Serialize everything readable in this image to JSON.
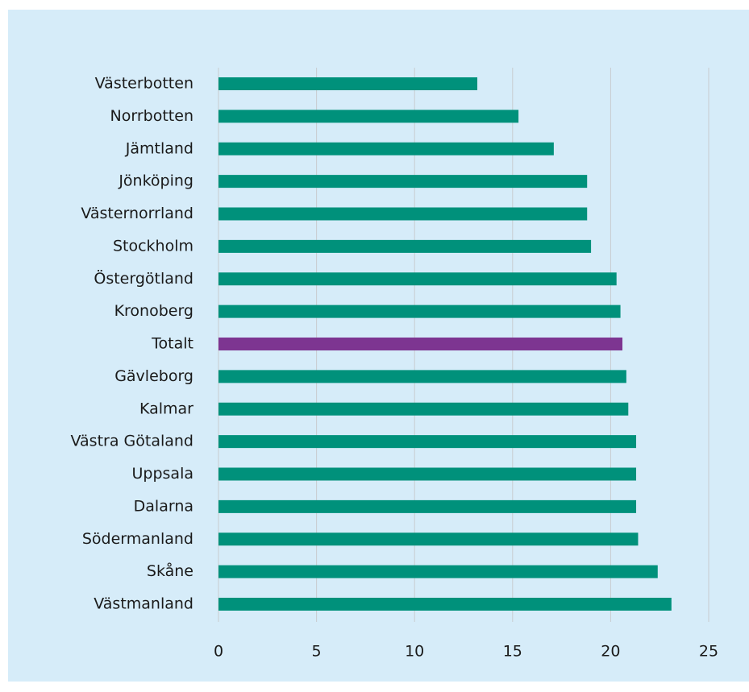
{
  "chart_data": {
    "type": "barh",
    "categories": [
      "Västerbotten",
      "Norrbotten",
      "Jämtland",
      "Jönköping",
      "Västernorrland",
      "Stockholm",
      "Östergötland",
      "Kronoberg",
      "Totalt",
      "Gävleborg",
      "Kalmar",
      "Västra Götaland",
      "Uppsala",
      "Dalarna",
      "Södermanland",
      "Skåne",
      "Västmanland"
    ],
    "values": [
      13.2,
      15.3,
      17.1,
      18.8,
      18.8,
      19.0,
      20.3,
      20.5,
      20.6,
      20.8,
      20.9,
      21.3,
      21.3,
      21.3,
      21.4,
      22.4,
      23.1
    ],
    "colors": [
      "#00917b",
      "#00917b",
      "#00917b",
      "#00917b",
      "#00917b",
      "#00917b",
      "#00917b",
      "#00917b",
      "#7d3591",
      "#00917b",
      "#00917b",
      "#00917b",
      "#00917b",
      "#00917b",
      "#00917b",
      "#00917b",
      "#00917b"
    ],
    "xlim": [
      0,
      25
    ],
    "xticks": [
      0,
      5,
      10,
      15,
      20,
      25
    ],
    "grid": true
  }
}
